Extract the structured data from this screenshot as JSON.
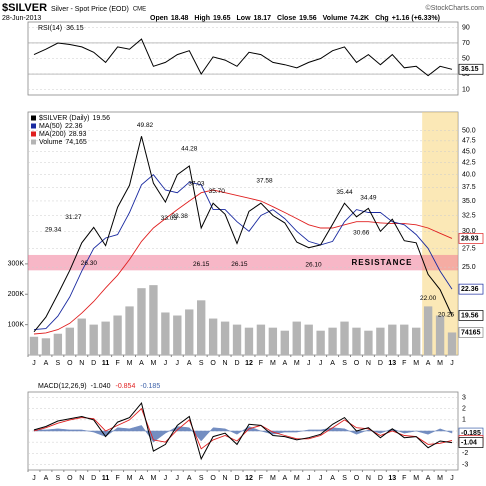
{
  "header": {
    "title": "$SILVER",
    "subtitle": "Silver - Spot Price (EOD)",
    "exchange": "CME",
    "credit": "©StockCharts.com",
    "date": "28-Jun-2013",
    "quote": [
      {
        "label": "Open",
        "value": "18.48"
      },
      {
        "label": "High",
        "value": "19.65"
      },
      {
        "label": "Low",
        "value": "18.17"
      },
      {
        "label": "Close",
        "value": "19.56"
      },
      {
        "label": "Volume",
        "value": "74.2K"
      },
      {
        "label": "Chg",
        "value": "+1.16 (+6.33%)"
      }
    ]
  },
  "chart_data": [
    {
      "type": "line",
      "title": "RSI(14)",
      "ylim": [
        3,
        97
      ],
      "yticks": [
        90,
        70,
        50,
        30,
        10
      ],
      "reference_lines": [
        70,
        30
      ],
      "series": [
        {
          "name": "RSI(14)",
          "color": "#000000",
          "values": [
            55,
            62,
            70,
            68,
            65,
            58,
            45,
            65,
            62,
            75,
            40,
            45,
            55,
            60,
            30,
            52,
            48,
            40,
            58,
            55,
            45,
            42,
            38,
            45,
            50,
            60,
            65,
            45,
            55,
            42,
            55,
            38,
            40,
            28,
            40,
            36.15
          ]
        }
      ]
    },
    {
      "type": "line",
      "title": "$SILVER (Daily)",
      "log_scale": true,
      "ylim": [
        16,
        55
      ],
      "yticks": [
        {
          "value": 50,
          "label": "50.0"
        },
        47.5,
        {
          "value": 45,
          "label": "45.0"
        },
        42.5,
        {
          "value": 40,
          "label": "40.0"
        },
        37.5,
        {
          "value": 35,
          "label": "35.0"
        },
        32.5,
        {
          "value": 30,
          "label": "30.0"
        },
        27.5,
        {
          "value": 25,
          "label": "25.0"
        }
      ],
      "y2lim": [
        0,
        800000
      ],
      "y2ticks": [
        {
          "value": 100000,
          "label": "100K"
        },
        {
          "value": 200000,
          "label": "200K"
        },
        {
          "value": 300000,
          "label": "300K"
        }
      ],
      "categories": [
        "J",
        "A",
        "S",
        "O",
        "N",
        "D",
        "11",
        "F",
        "M",
        "A",
        "M",
        "J",
        "J",
        "A",
        "S",
        "O",
        "N",
        "D",
        "12",
        "F",
        "M",
        "A",
        "M",
        "J",
        "J",
        "A",
        "S",
        "O",
        "N",
        "D",
        "13",
        "F",
        "M",
        "A",
        "M",
        "J"
      ],
      "series": [
        {
          "name": "Volume",
          "color": "#b4b4b4",
          "axis": "y2",
          "style": "bar",
          "last_label": "74,165",
          "values": [
            60000,
            55000,
            70000,
            90000,
            120000,
            100000,
            110000,
            130000,
            160000,
            220000,
            230000,
            140000,
            130000,
            150000,
            180000,
            120000,
            110000,
            100000,
            90000,
            100000,
            90000,
            80000,
            110000,
            100000,
            80000,
            90000,
            110000,
            90000,
            80000,
            90000,
            100000,
            100000,
            90000,
            160000,
            130000,
            74165
          ]
        },
        {
          "name": "MA(200)",
          "color": "#e02020",
          "values": [
            17.8,
            17.9,
            18.2,
            18.8,
            19.8,
            21,
            22.5,
            24,
            26,
            28.5,
            30.5,
            32,
            33.5,
            35,
            36.5,
            37,
            36.5,
            36,
            35.5,
            35,
            34,
            33,
            32,
            31,
            30.5,
            30.5,
            31,
            31.5,
            31.5,
            31.3,
            31.2,
            31.2,
            31,
            30.5,
            29.7,
            28.93
          ]
        },
        {
          "name": "MA(50)",
          "color": "#1a2aa0",
          "values": [
            18.2,
            18.3,
            19.5,
            21.5,
            24.5,
            27.5,
            29,
            29.5,
            33,
            38,
            40,
            37,
            36.5,
            38.5,
            38,
            33.5,
            33.5,
            31.5,
            30,
            32.5,
            33.5,
            32,
            30,
            28.5,
            28,
            28.5,
            31.5,
            33.5,
            33,
            33,
            31.5,
            31,
            29.5,
            27.5,
            24.5,
            22.36
          ]
        },
        {
          "name": "$SILVER (Daily)",
          "color": "#000000",
          "values": [
            18,
            19.4,
            21.8,
            24.6,
            28.3,
            30.6,
            27.9,
            33.9,
            37.9,
            48.6,
            38.3,
            34.8,
            40,
            41.8,
            30.5,
            34.6,
            32.7,
            28.2,
            33.2,
            34.6,
            32.5,
            31.3,
            28.4,
            27.6,
            28,
            31.1,
            34.6,
            32.3,
            33.7,
            30,
            31.9,
            28.6,
            28.3,
            24.1,
            22.3,
            19.56
          ]
        }
      ],
      "resistance": {
        "label": "RESISTANCE",
        "range": [
          24.6,
          26.6
        ]
      },
      "annotations": [
        49.82,
        44.28,
        37.03,
        33.03,
        33.38,
        31.27,
        29.34,
        {
          "value": 35.7,
          "label": "35.70"
        },
        37.58,
        35.44,
        34.49,
        30.66,
        {
          "value": 26.3,
          "label": "26.30"
        },
        26.15,
        26.15,
        {
          "value": 26.1,
          "label": "26.10"
        },
        {
          "value": 22,
          "label": "22.00"
        },
        20.25
      ]
    },
    {
      "type": "line",
      "title": "MACD(12,26,9)",
      "ylim": [
        -3.5,
        3.5
      ],
      "yticks": [
        3,
        2,
        1,
        0,
        -1,
        -2,
        -3
      ],
      "categories": [
        "J",
        "A",
        "S",
        "O",
        "N",
        "D",
        "11",
        "F",
        "M",
        "A",
        "M",
        "J",
        "J",
        "A",
        "S",
        "O",
        "N",
        "D",
        "12",
        "F",
        "M",
        "A",
        "M",
        "J",
        "J",
        "A",
        "S",
        "O",
        "N",
        "D",
        "13",
        "F",
        "M",
        "A",
        "M",
        "J"
      ],
      "series": [
        {
          "name": "Histogram",
          "color": "#3a5fa8",
          "style": "area",
          "values": [
            0.1,
            0.1,
            0.2,
            0.1,
            0.1,
            -0.1,
            -0.5,
            0.3,
            0.2,
            0.5,
            -1.0,
            -0.2,
            0.4,
            0.3,
            -0.9,
            0.3,
            0.2,
            -0.3,
            0.4,
            0.0,
            -0.3,
            -0.1,
            -0.1,
            0.1,
            0.1,
            0.3,
            0.2,
            -0.3,
            0.1,
            -0.2,
            0.2,
            -0.2,
            0.0,
            -0.3,
            0.2,
            -0.185
          ]
        },
        {
          "name": "Signal",
          "color": "#e02020",
          "values": [
            0.0,
            0.3,
            0.7,
            1.0,
            1.2,
            1.1,
            0.0,
            0.5,
            1.0,
            2.0,
            -0.8,
            -1.0,
            0.1,
            1.0,
            -1.6,
            -0.8,
            -0.4,
            -0.9,
            0.2,
            0.5,
            -0.1,
            -0.4,
            -0.7,
            -0.7,
            -0.4,
            0.3,
            1.0,
            0.3,
            0.2,
            -0.4,
            0.0,
            -0.4,
            -0.5,
            -1.2,
            -1.1,
            -0.854
          ]
        },
        {
          "name": "MACD",
          "color": "#000000",
          "last_label": "-1.040",
          "values": [
            0.1,
            0.4,
            0.9,
            1.1,
            1.3,
            1.0,
            -0.5,
            0.8,
            1.2,
            2.5,
            -1.8,
            -1.2,
            0.5,
            1.3,
            -2.5,
            -0.5,
            -0.2,
            -1.2,
            0.6,
            0.5,
            -0.4,
            -0.5,
            -0.8,
            -0.6,
            -0.3,
            0.6,
            1.2,
            0.0,
            0.3,
            -0.6,
            0.2,
            -0.6,
            -0.5,
            -1.5,
            -0.9,
            -1.04
          ]
        }
      ]
    }
  ]
}
